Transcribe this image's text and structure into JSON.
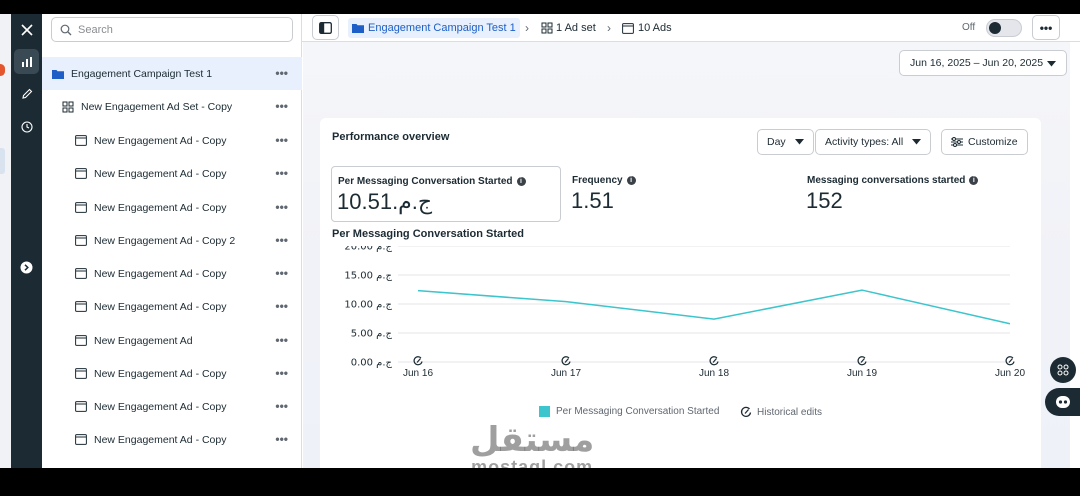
{
  "search": {
    "placeholder": "Search"
  },
  "tree": {
    "items": [
      {
        "label": "Engagement Campaign Test 1",
        "type": "campaign",
        "level": 0,
        "selected": true
      },
      {
        "label": "New Engagement Ad Set - Copy",
        "type": "adset",
        "level": 1,
        "selected": false
      },
      {
        "label": "New Engagement Ad - Copy",
        "type": "ad",
        "level": 2,
        "selected": false
      },
      {
        "label": "New Engagement Ad - Copy",
        "type": "ad",
        "level": 2,
        "selected": false
      },
      {
        "label": "New Engagement Ad - Copy",
        "type": "ad",
        "level": 2,
        "selected": false
      },
      {
        "label": "New Engagement Ad - Copy 2",
        "type": "ad",
        "level": 2,
        "selected": false
      },
      {
        "label": "New Engagement Ad - Copy",
        "type": "ad",
        "level": 2,
        "selected": false
      },
      {
        "label": "New Engagement Ad - Copy",
        "type": "ad",
        "level": 2,
        "selected": false
      },
      {
        "label": "New Engagement Ad",
        "type": "ad",
        "level": 2,
        "selected": false
      },
      {
        "label": "New Engagement Ad - Copy",
        "type": "ad",
        "level": 2,
        "selected": false
      },
      {
        "label": "New Engagement Ad - Copy",
        "type": "ad",
        "level": 2,
        "selected": false
      },
      {
        "label": "New Engagement Ad - Copy",
        "type": "ad",
        "level": 2,
        "selected": false
      }
    ],
    "more_glyph": "•••"
  },
  "topbar": {
    "breadcrumb": [
      {
        "label": "Engagement Campaign Test 1",
        "icon": "folder-icon"
      },
      {
        "label": "1 Ad set",
        "icon": "grid-icon"
      },
      {
        "label": "10 Ads",
        "icon": "ad-icon"
      }
    ],
    "toggle_label": "Off",
    "toggle_on": false,
    "more_glyph": "•••"
  },
  "date_range": "Jun 16, 2025 – Jun 20, 2025",
  "overview": {
    "title": "Performance overview",
    "granularity": "Day",
    "activity_filter": "Activity types: All",
    "customize_label": "Customize",
    "metrics": [
      {
        "label": "Per Messaging Conversation Started",
        "value": "ج.م.10.51",
        "selected": true
      },
      {
        "label": "Frequency",
        "value": "1.51",
        "selected": false
      },
      {
        "label": "Messaging conversations started",
        "value": "152",
        "selected": false
      }
    ]
  },
  "chart_data": {
    "type": "line",
    "title": "Per Messaging Conversation Started",
    "x": [
      "Jun 16",
      "Jun 17",
      "Jun 18",
      "Jun 19",
      "Jun 20"
    ],
    "series": [
      {
        "name": "Per Messaging Conversation Started",
        "values": [
          12.3,
          10.4,
          7.4,
          12.4,
          6.6
        ],
        "color": "#3cc5cc"
      }
    ],
    "y_ticks": [
      "ج.م 0.00",
      "ج.م 5.00",
      "ج.م 10.00",
      "ج.م 15.00",
      "ج.م 20.00"
    ],
    "ylim": [
      0,
      20
    ],
    "grid": true,
    "legend": [
      "Per Messaging Conversation Started",
      "Historical edits"
    ],
    "legend_position": "bottom"
  },
  "colors": {
    "accent": "#1d5fc7",
    "line": "#3cc5cc",
    "rail": "#1c2b33",
    "selected_bg": "#e7f0fc"
  },
  "watermark": {
    "arabic": "مستقل",
    "latin": "mostaql.com"
  }
}
